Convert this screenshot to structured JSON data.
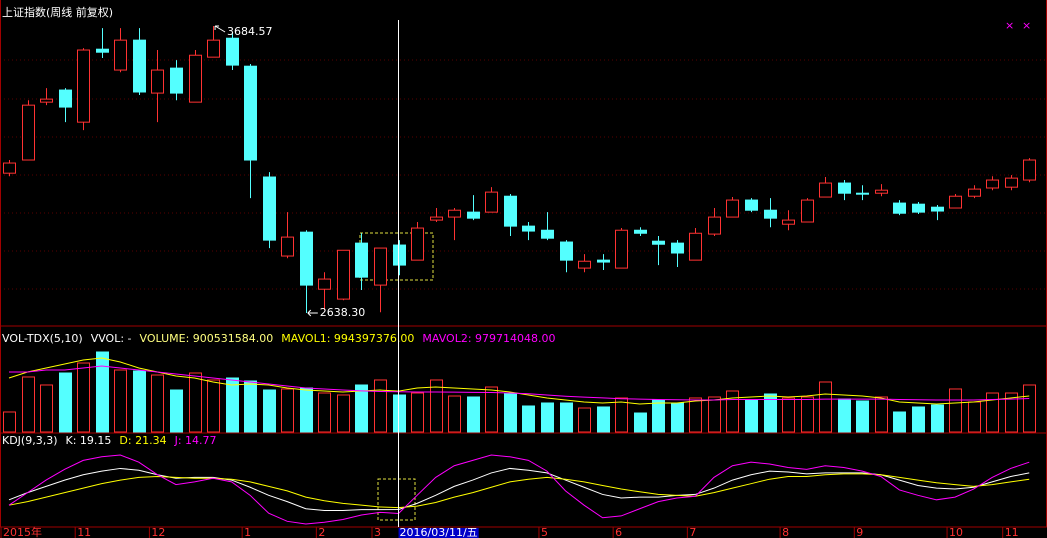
{
  "chart_data": [
    {
      "type": "candlestick",
      "title": "上证指数(周线 前复权)",
      "high_label": "3684.57",
      "low_label": "2638.30",
      "up_color": "#ff3232",
      "down_color": "#54ffff",
      "open": [
        3148,
        3196,
        3407,
        3451,
        3334,
        3600,
        3524,
        3633,
        3440,
        3531,
        3407,
        3571,
        3640,
        3538,
        3134,
        2846,
        2933,
        2725,
        2689,
        2893,
        2740,
        2886,
        2831,
        2977,
        2988,
        3006,
        3006,
        3064,
        2955,
        2940,
        2897,
        2802,
        2831,
        2802,
        2940,
        2900,
        2893,
        2831,
        2926,
        2988,
        3050,
        3013,
        2962,
        2970,
        3061,
        3112,
        3075,
        3075,
        3039,
        3035,
        3024,
        3021,
        3064,
        3094,
        3097,
        3123
      ],
      "high": [
        3196,
        3414,
        3458,
        3458,
        3604,
        3677,
        3677,
        3677,
        3597,
        3560,
        3597,
        3684.57,
        3662,
        3546,
        3152,
        3006,
        2940,
        2787,
        2867,
        2929,
        2875,
        2904,
        2970,
        3021,
        3021,
        3068,
        3097,
        3072,
        2970,
        3006,
        2904,
        2853,
        2853,
        2948,
        2951,
        2919,
        2904,
        2948,
        3021,
        3061,
        3057,
        3057,
        3013,
        3057,
        3134,
        3123,
        3104,
        3108,
        3050,
        3043,
        3032,
        3072,
        3104,
        3137,
        3141,
        3203
      ],
      "low": [
        3137,
        3196,
        3396,
        3334,
        3305,
        3568,
        3516,
        3433,
        3334,
        3414,
        3407,
        3571,
        3524,
        3057,
        2875,
        2838,
        2638.3,
        2649,
        2685,
        2722,
        2641,
        2776,
        2831,
        2970,
        2904,
        2977,
        3006,
        2919,
        2904,
        2904,
        2787,
        2787,
        2795,
        2802,
        2919,
        2813,
        2806,
        2831,
        2919,
        2988,
        3006,
        2951,
        2940,
        2970,
        3061,
        3050,
        3050,
        3064,
        2995,
        2999,
        2977,
        3021,
        3057,
        3086,
        3086,
        3115
      ],
      "close": [
        3185,
        3396,
        3418,
        3389,
        3597,
        3589,
        3633,
        3444,
        3524,
        3440,
        3578,
        3633,
        3542,
        3196,
        2904,
        2915,
        2740,
        2762,
        2867,
        2769,
        2875,
        2813,
        2948,
        2988,
        3013,
        2984,
        3079,
        2955,
        2937,
        2911,
        2831,
        2827,
        2824,
        2940,
        2929,
        2889,
        2857,
        2929,
        2988,
        3050,
        3013,
        2984,
        2977,
        3050,
        3112,
        3075,
        3072,
        3086,
        3002,
        3006,
        3010,
        3064,
        3090,
        3123,
        3130,
        3196
      ]
    },
    {
      "type": "bar",
      "header": [
        "VOL-TDX(5,10)",
        "VVOL: -"
      ],
      "series": [
        {
          "name": "VOLUME: 900531584.00",
          "color": "#ffff80",
          "values": [
            487000000,
            1339000000,
            1144000000,
            1436000000,
            1679000000,
            1947000000,
            1509000000,
            1485000000,
            1387000000,
            1022000000,
            1436000000,
            1266000000,
            1314000000,
            1241000000,
            1022000000,
            1047000000,
            1071000000,
            949000000,
            901000000,
            1144000000,
            1266000000,
            900531584,
            949000000,
            1266000000,
            876000000,
            852000000,
            1095000000,
            949000000,
            633000000,
            706000000,
            706000000,
            584000000,
            609000000,
            828000000,
            462000000,
            779000000,
            706000000,
            828000000,
            852000000,
            998000000,
            779000000,
            925000000,
            828000000,
            852000000,
            1217000000,
            803000000,
            755000000,
            852000000,
            487000000,
            609000000,
            657000000,
            1047000000,
            730000000,
            949000000,
            949000000,
            1144000000
          ]
        },
        {
          "name": "MAVOL1: 994397376.00",
          "color": "#ffff00",
          "values": [
            1314000000,
            1460000000,
            1558000000,
            1655000000,
            1752000000,
            1801000000,
            1704000000,
            1558000000,
            1460000000,
            1363000000,
            1314000000,
            1217000000,
            1144000000,
            1168000000,
            1144000000,
            1071000000,
            1022000000,
            998000000,
            974000000,
            998000000,
            1022000000,
            994397376,
            1071000000,
            1095000000,
            1071000000,
            1047000000,
            1022000000,
            974000000,
            901000000,
            828000000,
            779000000,
            730000000,
            706000000,
            730000000,
            682000000,
            706000000,
            706000000,
            755000000,
            779000000,
            828000000,
            852000000,
            876000000,
            852000000,
            876000000,
            925000000,
            901000000,
            876000000,
            828000000,
            730000000,
            706000000,
            682000000,
            706000000,
            730000000,
            779000000,
            828000000,
            876000000
          ]
        },
        {
          "name": "MAVOL2: 979714048.00",
          "color": "#ff00ff",
          "values": [
            1460000000,
            1460000000,
            1509000000,
            1509000000,
            1558000000,
            1606000000,
            1558000000,
            1509000000,
            1460000000,
            1412000000,
            1363000000,
            1314000000,
            1266000000,
            1217000000,
            1168000000,
            1120000000,
            1071000000,
            1047000000,
            1022000000,
            1000000000,
            985000000,
            979714048,
            975000000,
            975000000,
            970000000,
            965000000,
            960000000,
            950000000,
            930000000,
            900000000,
            870000000,
            850000000,
            830000000,
            810000000,
            800000000,
            790000000,
            785000000,
            780000000,
            780000000,
            790000000,
            790000000,
            790000000,
            790000000,
            790000000,
            800000000,
            800000000,
            800000000,
            800000000,
            790000000,
            785000000,
            780000000,
            780000000,
            780000000,
            790000000,
            800000000,
            815000000
          ]
        }
      ]
    },
    {
      "type": "line",
      "header": [
        "KDJ(9,3,3)"
      ],
      "crosshair_index": 21,
      "categories": [
        "2015年",
        null,
        null,
        null,
        "11",
        null,
        null,
        null,
        "12",
        null,
        null,
        null,
        null,
        "1",
        null,
        null,
        null,
        "2",
        null,
        null,
        "3",
        "2016/03/11/五",
        null,
        null,
        null,
        null,
        null,
        null,
        null,
        "5",
        null,
        null,
        null,
        "6",
        null,
        null,
        null,
        "7",
        null,
        null,
        null,
        null,
        "8",
        null,
        null,
        null,
        "9",
        null,
        null,
        null,
        null,
        "10",
        null,
        null,
        "11",
        null
      ],
      "series": [
        {
          "name": "K: 19.15",
          "color": "#ffffff",
          "values": [
            30,
            38,
            45,
            52,
            58,
            62,
            65,
            63,
            58,
            54,
            55,
            55,
            52,
            44,
            35,
            28,
            20,
            18,
            18,
            19,
            19,
            19.15,
            26,
            35,
            45,
            52,
            60,
            65,
            63,
            60,
            52,
            44,
            36,
            32,
            33,
            33,
            35,
            36,
            43,
            52,
            58,
            62,
            61,
            59,
            60,
            60,
            60,
            58,
            52,
            46,
            43,
            42,
            44,
            50,
            56,
            60
          ]
        },
        {
          "name": "D: 21.34",
          "color": "#ffff00",
          "values": [
            24,
            28,
            33,
            38,
            43,
            48,
            52,
            55,
            56,
            55,
            54,
            54,
            53,
            50,
            45,
            40,
            33,
            29,
            26,
            24,
            22,
            21.34,
            23,
            27,
            33,
            38,
            44,
            50,
            53,
            55,
            53,
            50,
            46,
            42,
            39,
            36,
            35,
            34,
            38,
            43,
            48,
            53,
            56,
            56,
            58,
            59,
            59,
            58,
            55,
            52,
            49,
            47,
            45,
            47,
            50,
            53
          ]
        },
        {
          "name": "J: 14.77",
          "color": "#ff00ff",
          "values": [
            24,
            38,
            52,
            64,
            74,
            78,
            80,
            72,
            58,
            47,
            50,
            54,
            50,
            35,
            15,
            6,
            3,
            5,
            8,
            13,
            16,
            14.77,
            35,
            55,
            68,
            74,
            80,
            78,
            74,
            62,
            40,
            24,
            10,
            12,
            20,
            28,
            32,
            34,
            55,
            68,
            72,
            70,
            66,
            64,
            68,
            66,
            62,
            56,
            41,
            35,
            30,
            33,
            42,
            55,
            65,
            72
          ]
        }
      ]
    }
  ]
}
